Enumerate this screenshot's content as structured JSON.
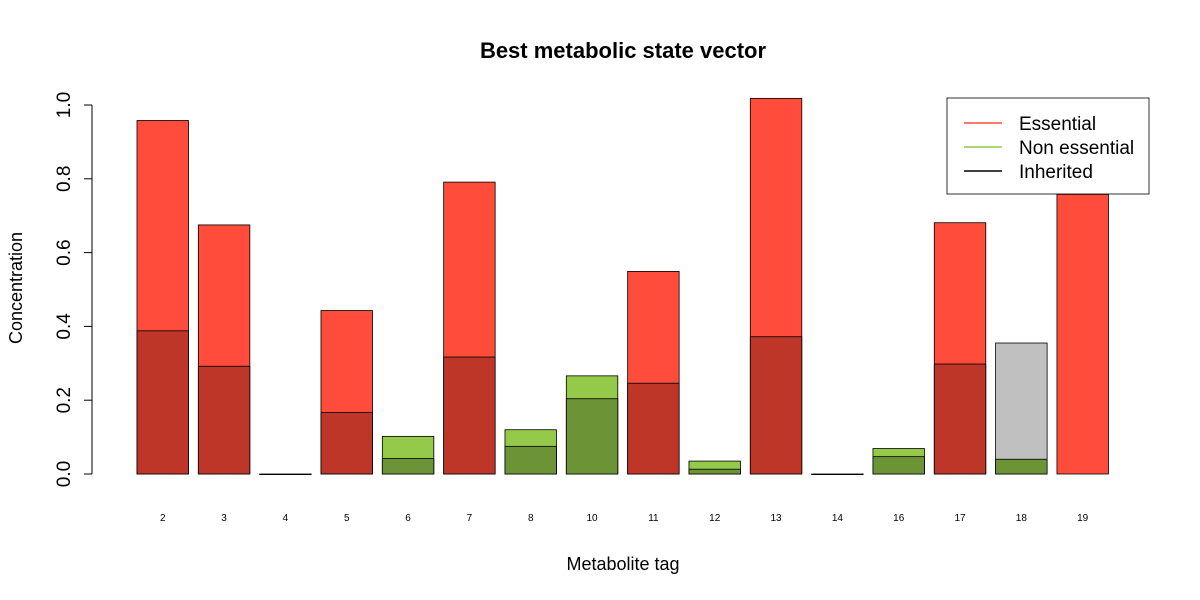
{
  "chart_data": {
    "type": "bar",
    "title": "Best metabolic state vector",
    "xlabel": "Metabolite tag",
    "ylabel": "Concentration",
    "ylim": [
      0,
      1.0
    ],
    "yticks": [
      "0.0",
      "0.2",
      "0.4",
      "0.6",
      "0.8",
      "1.0"
    ],
    "categories": [
      "2",
      "3",
      "4",
      "5",
      "6",
      "7",
      "8",
      "10",
      "11",
      "12",
      "13",
      "14",
      "16",
      "17",
      "18",
      "19"
    ],
    "series": [
      {
        "name": "Essential",
        "color": "#ff4c3b",
        "values": [
          0.958,
          0.675,
          null,
          0.443,
          null,
          0.791,
          null,
          null,
          0.549,
          null,
          1.018,
          null,
          null,
          0.681,
          null,
          0.758
        ]
      },
      {
        "name": "Non essential",
        "color": "#94c94a",
        "values": [
          null,
          null,
          null,
          null,
          0.102,
          null,
          0.12,
          0.266,
          null,
          0.035,
          null,
          null,
          0.069,
          null,
          null,
          null
        ]
      },
      {
        "name": "Inherited",
        "color": "#000000",
        "values": [
          0.388,
          0.292,
          0.0,
          0.167,
          0.042,
          0.317,
          0.075,
          0.204,
          0.246,
          0.013,
          0.372,
          0.0,
          0.047,
          0.298,
          0.04,
          null
        ]
      },
      {
        "name": "",
        "color": "#c0c0c0",
        "values": [
          null,
          null,
          null,
          null,
          null,
          null,
          null,
          null,
          null,
          null,
          null,
          null,
          null,
          null,
          0.355,
          null
        ]
      }
    ],
    "inherited_fill_on_essential": "#bd3628",
    "inherited_fill_on_nonessential": "#6d9337",
    "legend": {
      "placement": "top-right",
      "entries": [
        {
          "label": "Essential",
          "color": "#ff4c3b"
        },
        {
          "label": "Non essential",
          "color": "#94c94a"
        },
        {
          "label": "Inherited",
          "color": "#000000"
        }
      ]
    },
    "grid": false
  }
}
